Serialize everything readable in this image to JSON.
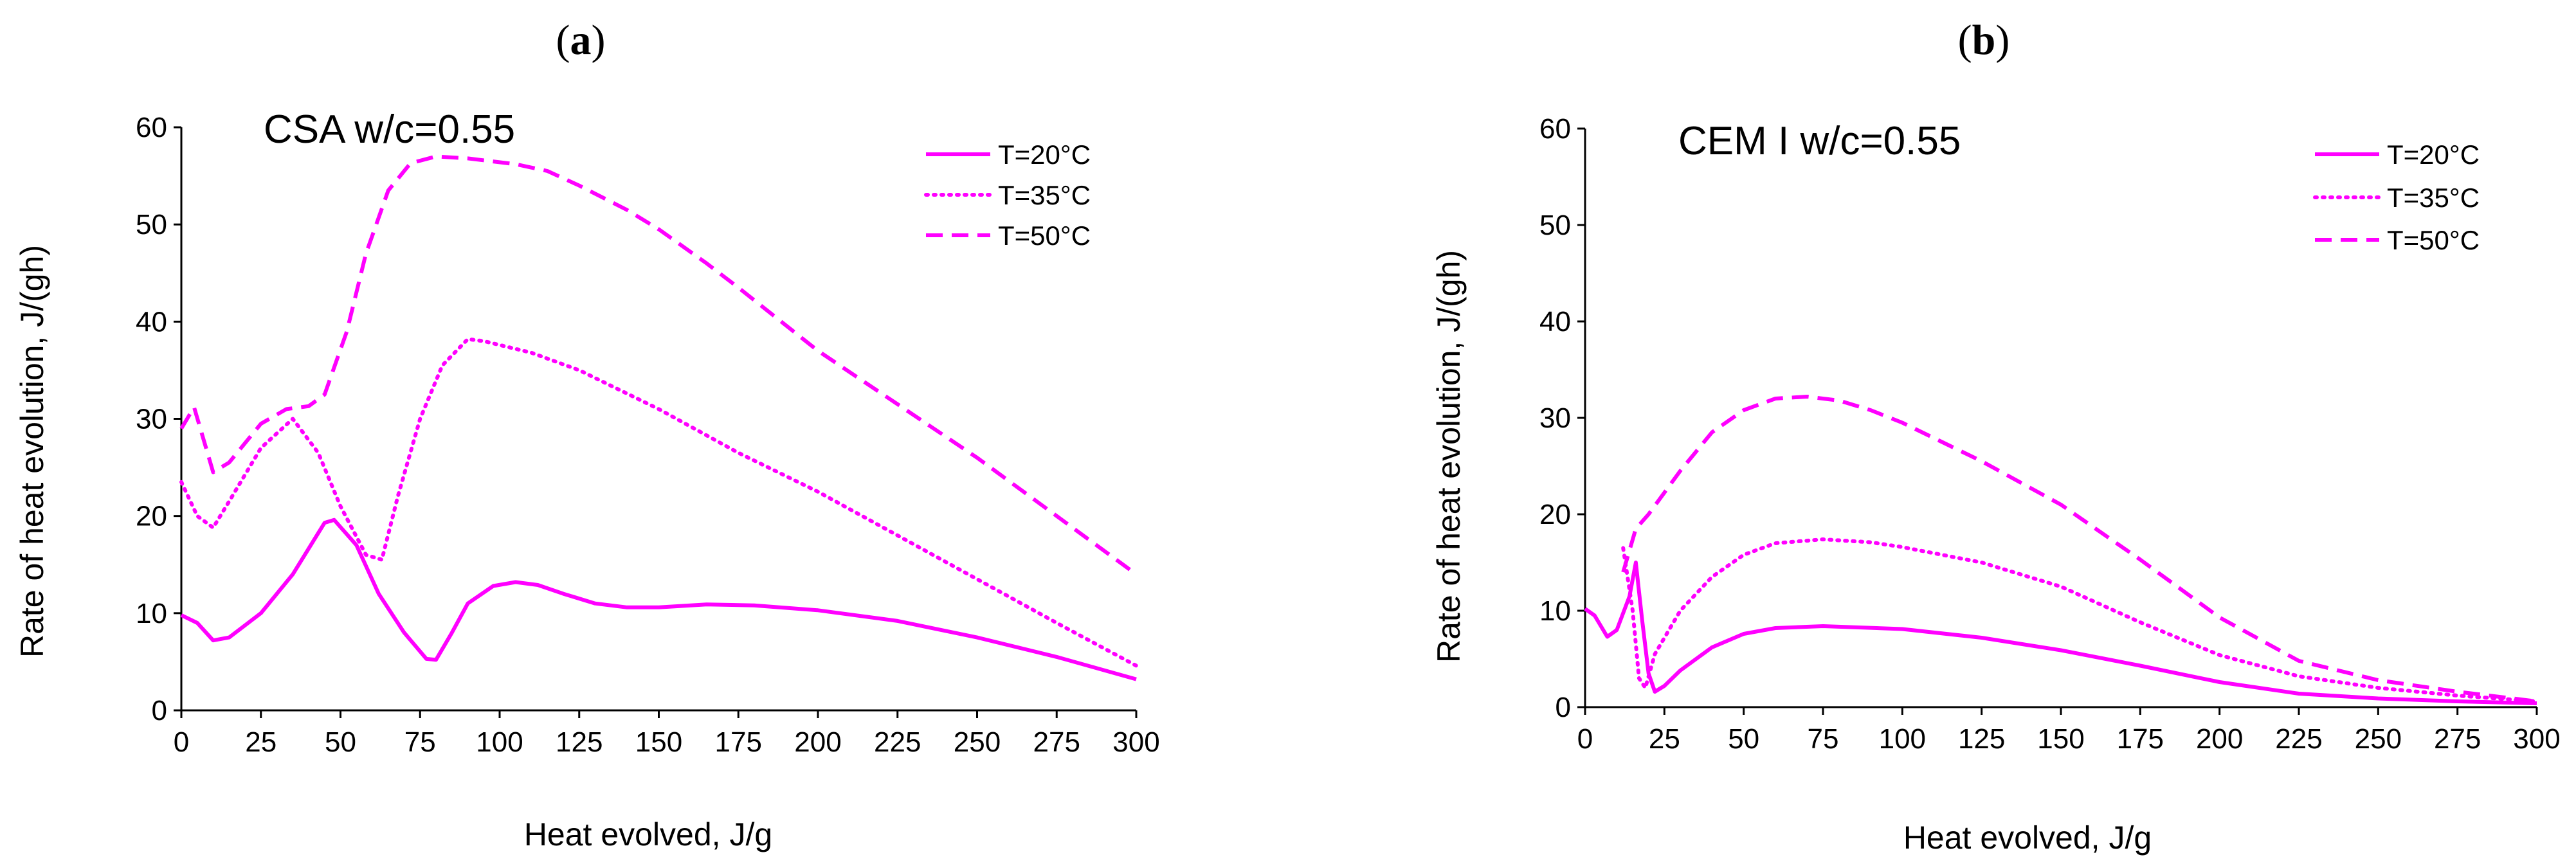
{
  "chart_data": [
    {
      "type": "line",
      "panel_label": "a",
      "title": "CSA w/c=0.55",
      "xlabel": "Heat evolved, J/g",
      "ylabel": "Rate of heat evolution, J/(gh)",
      "xlim": [
        0,
        300
      ],
      "ylim": [
        0,
        60
      ],
      "xticks": [
        0,
        25,
        50,
        75,
        100,
        125,
        150,
        175,
        200,
        225,
        250,
        275,
        300
      ],
      "yticks": [
        0,
        10,
        20,
        30,
        40,
        50,
        60
      ],
      "grid": false,
      "legend_position": "top-right",
      "color": "#ff00ff",
      "series": [
        {
          "name": "T=20°C",
          "style": "solid",
          "points": [
            [
              0,
              9.8
            ],
            [
              5,
              9.0
            ],
            [
              10,
              7.2
            ],
            [
              15,
              7.5
            ],
            [
              25,
              10.0
            ],
            [
              35,
              14.0
            ],
            [
              45,
              19.3
            ],
            [
              48,
              19.6
            ],
            [
              55,
              17.0
            ],
            [
              62,
              12.0
            ],
            [
              70,
              8.0
            ],
            [
              77,
              5.3
            ],
            [
              80,
              5.2
            ],
            [
              85,
              8.0
            ],
            [
              90,
              11.0
            ],
            [
              98,
              12.8
            ],
            [
              105,
              13.2
            ],
            [
              112,
              12.9
            ],
            [
              120,
              12.0
            ],
            [
              130,
              11.0
            ],
            [
              140,
              10.6
            ],
            [
              150,
              10.6
            ],
            [
              165,
              10.9
            ],
            [
              180,
              10.8
            ],
            [
              200,
              10.3
            ],
            [
              225,
              9.2
            ],
            [
              250,
              7.5
            ],
            [
              275,
              5.5
            ],
            [
              300,
              3.2
            ]
          ]
        },
        {
          "name": "T=35°C",
          "style": "dotted",
          "points": [
            [
              0,
              23.5
            ],
            [
              5,
              20.0
            ],
            [
              10,
              18.8
            ],
            [
              15,
              21.5
            ],
            [
              25,
              27.0
            ],
            [
              35,
              30.0
            ],
            [
              43,
              26.5
            ],
            [
              50,
              21.0
            ],
            [
              58,
              16.0
            ],
            [
              63,
              15.5
            ],
            [
              68,
              22.0
            ],
            [
              75,
              30.0
            ],
            [
              82,
              35.5
            ],
            [
              90,
              38.2
            ],
            [
              95,
              38.0
            ],
            [
              110,
              36.8
            ],
            [
              125,
              35.0
            ],
            [
              150,
              31.0
            ],
            [
              175,
              26.5
            ],
            [
              200,
              22.5
            ],
            [
              225,
              18.0
            ],
            [
              250,
              13.5
            ],
            [
              275,
              9.0
            ],
            [
              300,
              4.6
            ]
          ]
        },
        {
          "name": "T=50°C",
          "style": "dashed",
          "points": [
            [
              0,
              29.0
            ],
            [
              4,
              31.2
            ],
            [
              10,
              24.5
            ],
            [
              15,
              25.5
            ],
            [
              25,
              29.5
            ],
            [
              33,
              31.0
            ],
            [
              40,
              31.3
            ],
            [
              45,
              32.5
            ],
            [
              52,
              39.0
            ],
            [
              58,
              47.0
            ],
            [
              65,
              53.5
            ],
            [
              72,
              56.3
            ],
            [
              80,
              57.0
            ],
            [
              90,
              56.8
            ],
            [
              105,
              56.2
            ],
            [
              115,
              55.5
            ],
            [
              125,
              54.0
            ],
            [
              140,
              51.5
            ],
            [
              150,
              49.5
            ],
            [
              165,
              46.0
            ],
            [
              175,
              43.5
            ],
            [
              200,
              37.0
            ],
            [
              225,
              31.5
            ],
            [
              250,
              26.0
            ],
            [
              275,
              20.0
            ],
            [
              300,
              14.0
            ]
          ]
        }
      ]
    },
    {
      "type": "line",
      "panel_label": "b",
      "title": "CEM I w/c=0.55",
      "xlabel": "Heat evolved, J/g",
      "ylabel": "Rate of heat evolution, J/(gh)",
      "xlim": [
        0,
        300
      ],
      "ylim": [
        0,
        60
      ],
      "xticks": [
        0,
        25,
        50,
        75,
        100,
        125,
        150,
        175,
        200,
        225,
        250,
        275,
        300
      ],
      "yticks": [
        0,
        10,
        20,
        30,
        40,
        50,
        60
      ],
      "grid": false,
      "legend_position": "top-right",
      "color": "#ff00ff",
      "series": [
        {
          "name": "T=20°C",
          "style": "solid",
          "points": [
            [
              0,
              10.2
            ],
            [
              3,
              9.5
            ],
            [
              7,
              7.3
            ],
            [
              10,
              8.0
            ],
            [
              14,
              11.5
            ],
            [
              16,
              15.0
            ],
            [
              18,
              9.0
            ],
            [
              20,
              3.5
            ],
            [
              22,
              1.6
            ],
            [
              25,
              2.2
            ],
            [
              30,
              3.8
            ],
            [
              40,
              6.2
            ],
            [
              50,
              7.6
            ],
            [
              60,
              8.2
            ],
            [
              75,
              8.4
            ],
            [
              100,
              8.1
            ],
            [
              125,
              7.2
            ],
            [
              150,
              5.9
            ],
            [
              175,
              4.3
            ],
            [
              200,
              2.6
            ],
            [
              225,
              1.4
            ],
            [
              250,
              0.9
            ],
            [
              275,
              0.6
            ],
            [
              300,
              0.4
            ]
          ]
        },
        {
          "name": "T=35°C",
          "style": "dotted",
          "points": [
            [
              12,
              16.5
            ],
            [
              15,
              10.0
            ],
            [
              17,
              3.0
            ],
            [
              19,
              2.0
            ],
            [
              22,
              5.5
            ],
            [
              30,
              10.0
            ],
            [
              40,
              13.5
            ],
            [
              50,
              15.8
            ],
            [
              60,
              17.0
            ],
            [
              75,
              17.4
            ],
            [
              90,
              17.1
            ],
            [
              100,
              16.6
            ],
            [
              125,
              15.0
            ],
            [
              150,
              12.5
            ],
            [
              175,
              8.8
            ],
            [
              200,
              5.4
            ],
            [
              225,
              3.2
            ],
            [
              250,
              2.0
            ],
            [
              275,
              1.2
            ],
            [
              300,
              0.6
            ]
          ]
        },
        {
          "name": "T=50°C",
          "style": "dashed",
          "points": [
            [
              12,
              14.0
            ],
            [
              16,
              18.5
            ],
            [
              20,
              20.0
            ],
            [
              30,
              24.5
            ],
            [
              40,
              28.5
            ],
            [
              50,
              30.8
            ],
            [
              60,
              32.0
            ],
            [
              70,
              32.2
            ],
            [
              80,
              31.8
            ],
            [
              90,
              30.8
            ],
            [
              100,
              29.5
            ],
            [
              125,
              25.5
            ],
            [
              150,
              21.0
            ],
            [
              175,
              15.3
            ],
            [
              200,
              9.3
            ],
            [
              225,
              4.8
            ],
            [
              250,
              2.8
            ],
            [
              275,
              1.6
            ],
            [
              300,
              0.6
            ]
          ]
        }
      ]
    }
  ]
}
